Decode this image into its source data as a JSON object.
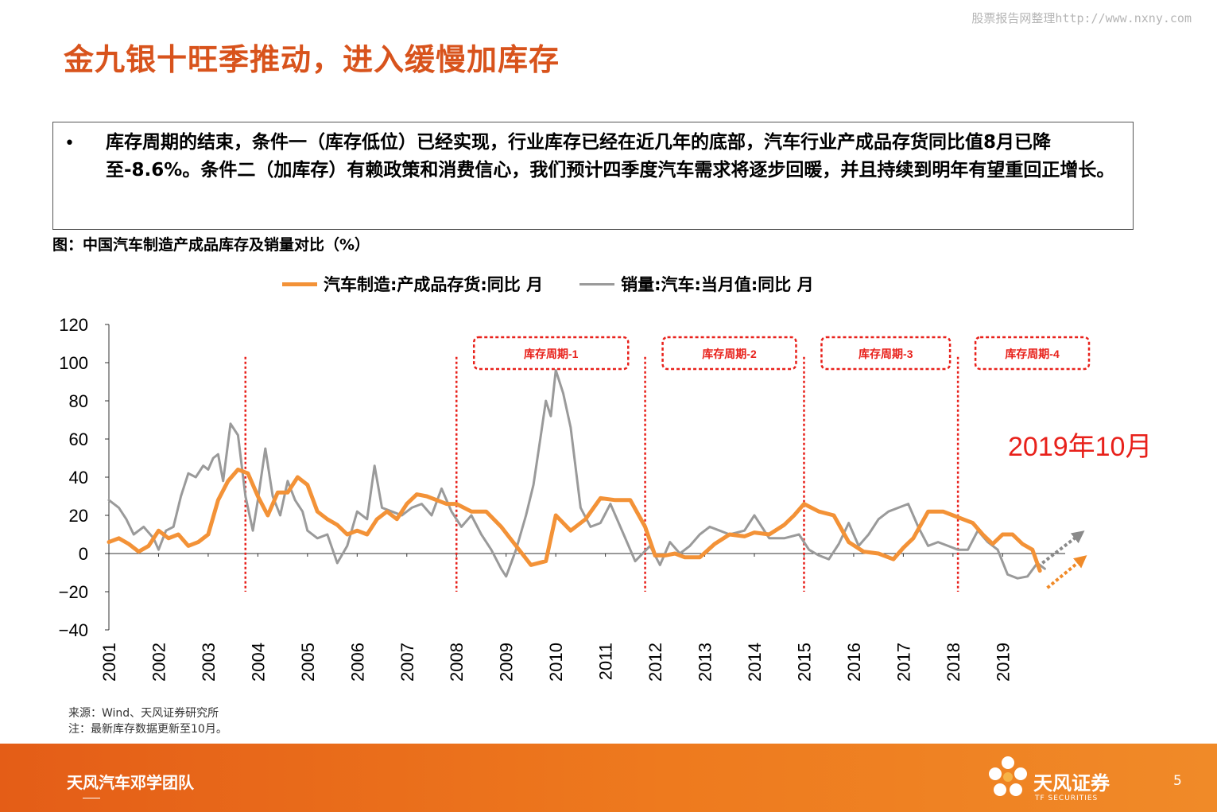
{
  "watermark": "股票报告网整理http://www.nxny.com",
  "title": "金九银十旺季推动，进入缓慢加库存",
  "bullet": {
    "marker": "•",
    "text": "库存周期的结束，条件一（库存低位）已经实现，行业库存已经在近几年的底部，汽车行业产成品存货同比值8月已降至-8.6%。条件二（加库存）有赖政策和消费信心，我们预计四季度汽车需求将逐步回暖，并且持续到明年有望重回正增长。"
  },
  "chart_caption": "图：中国汽车制造产成品库存及销量对比（%）",
  "source": {
    "line1": "来源：Wind、天风证券研究所",
    "line2": "注：最新库存数据更新至10月。"
  },
  "footer": {
    "team": "天风汽车邓学团队",
    "brand_cn": "天风证券",
    "brand_en": "TF SECURITIES",
    "page": "5"
  },
  "colors": {
    "accent": "#d8531c",
    "inventory": "#f39237",
    "sales": "#9a9a9a",
    "cycle_red": "#e8211b",
    "footer": "#e96a1b"
  },
  "chart_data": {
    "type": "line",
    "title": "",
    "xlabel": "",
    "ylabel": "",
    "ylim": [
      -40,
      120
    ],
    "yticks": [
      "120",
      "100",
      "80",
      "60",
      "40",
      "20",
      "0",
      "−20",
      "−40"
    ],
    "ytick_values": [
      120,
      100,
      80,
      60,
      40,
      20,
      0,
      -20,
      -40
    ],
    "xticks": [
      "2001",
      "2002",
      "2003",
      "2004",
      "2005",
      "2006",
      "2007",
      "2008",
      "2009",
      "2010",
      "2011",
      "2012",
      "2013",
      "2014",
      "2015",
      "2016",
      "2017",
      "2018",
      "2019"
    ],
    "xrange": [
      2001,
      2020.9
    ],
    "grid": false,
    "legend_position": "top",
    "series": [
      {
        "name": "汽车制造:产成品存货:同比 月",
        "color": "#f39237",
        "x": [
          2001.0,
          2001.2,
          2001.4,
          2001.6,
          2001.8,
          2002.0,
          2002.2,
          2002.4,
          2002.6,
          2002.8,
          2003.0,
          2003.2,
          2003.4,
          2003.6,
          2003.8,
          2004.0,
          2004.2,
          2004.4,
          2004.6,
          2004.8,
          2005.0,
          2005.2,
          2005.4,
          2005.6,
          2005.8,
          2006.0,
          2006.2,
          2006.4,
          2006.6,
          2006.8,
          2007.0,
          2007.2,
          2007.4,
          2007.6,
          2007.8,
          2008.0,
          2008.3,
          2008.6,
          2008.9,
          2009.2,
          2009.5,
          2009.8,
          2010.0,
          2010.3,
          2010.6,
          2010.9,
          2011.2,
          2011.5,
          2011.8,
          2012.0,
          2012.2,
          2012.4,
          2012.6,
          2012.9,
          2013.2,
          2013.5,
          2013.8,
          2014.0,
          2014.3,
          2014.6,
          2014.8,
          2015.0,
          2015.3,
          2015.6,
          2015.9,
          2016.2,
          2016.5,
          2016.8,
          2017.0,
          2017.2,
          2017.5,
          2017.8,
          2018.0,
          2018.2,
          2018.4,
          2018.6,
          2018.8,
          2019.0,
          2019.2,
          2019.4,
          2019.6,
          2019.75
        ],
        "values": [
          6,
          8,
          5,
          1,
          4,
          12,
          8,
          10,
          4,
          6,
          10,
          28,
          38,
          44,
          42,
          30,
          20,
          32,
          32,
          40,
          36,
          22,
          18,
          15,
          10,
          12,
          10,
          18,
          22,
          18,
          26,
          31,
          30,
          28,
          26,
          26,
          22,
          22,
          14,
          4,
          -6,
          -4,
          20,
          12,
          18,
          29,
          28,
          28,
          14,
          -1,
          -1,
          0,
          -2,
          -2,
          5,
          10,
          9,
          11,
          10,
          15,
          20,
          26,
          22,
          20,
          6,
          1,
          0,
          -3,
          3,
          8,
          22,
          22,
          20,
          18,
          16,
          10,
          5,
          10,
          10,
          5,
          2,
          -9
        ]
      },
      {
        "name": "销量:汽车:当月值:同比 月",
        "color": "#9a9a9a",
        "x": [
          2001.0,
          2001.2,
          2001.35,
          2001.5,
          2001.7,
          2001.9,
          2002.0,
          2002.15,
          2002.3,
          2002.45,
          2002.6,
          2002.75,
          2002.9,
          2003.0,
          2003.1,
          2003.2,
          2003.3,
          2003.45,
          2003.6,
          2003.75,
          2003.9,
          2004.0,
          2004.15,
          2004.3,
          2004.45,
          2004.6,
          2004.75,
          2004.9,
          2005.0,
          2005.2,
          2005.4,
          2005.6,
          2005.8,
          2006.0,
          2006.2,
          2006.35,
          2006.5,
          2006.7,
          2006.9,
          2007.1,
          2007.3,
          2007.5,
          2007.7,
          2007.9,
          2008.1,
          2008.3,
          2008.5,
          2008.7,
          2008.9,
          2009.0,
          2009.2,
          2009.4,
          2009.55,
          2009.7,
          2009.8,
          2009.9,
          2010.0,
          2010.15,
          2010.3,
          2010.5,
          2010.7,
          2010.9,
          2011.1,
          2011.3,
          2011.6,
          2011.9,
          2012.1,
          2012.3,
          2012.5,
          2012.7,
          2012.9,
          2013.1,
          2013.3,
          2013.5,
          2013.8,
          2014.0,
          2014.3,
          2014.6,
          2014.9,
          2015.1,
          2015.3,
          2015.5,
          2015.7,
          2015.9,
          2016.1,
          2016.3,
          2016.5,
          2016.7,
          2016.9,
          2017.1,
          2017.3,
          2017.5,
          2017.7,
          2017.9,
          2018.1,
          2018.3,
          2018.5,
          2018.7,
          2018.9,
          2019.1,
          2019.3,
          2019.5,
          2019.7,
          2019.85
        ],
        "values": [
          28,
          24,
          18,
          10,
          14,
          8,
          2,
          12,
          14,
          30,
          42,
          40,
          46,
          44,
          50,
          52,
          38,
          68,
          62,
          30,
          12,
          28,
          55,
          30,
          20,
          38,
          28,
          22,
          12,
          8,
          10,
          -5,
          4,
          22,
          18,
          46,
          24,
          22,
          20,
          24,
          26,
          20,
          34,
          22,
          14,
          20,
          10,
          2,
          -8,
          -12,
          2,
          20,
          36,
          62,
          80,
          72,
          96,
          84,
          66,
          24,
          14,
          16,
          26,
          14,
          -4,
          4,
          -6,
          6,
          0,
          4,
          10,
          14,
          12,
          10,
          12,
          20,
          8,
          8,
          10,
          2,
          -1,
          -3,
          5,
          16,
          4,
          10,
          18,
          22,
          24,
          26,
          14,
          4,
          6,
          4,
          2,
          2,
          12,
          6,
          2,
          -11,
          -13,
          -12,
          -5,
          -8
        ]
      }
    ],
    "cycles": [
      {
        "label": "库存周期-1",
        "start": 2008.0,
        "end": 2011.8
      },
      {
        "label": "库存周期-2",
        "start": 2011.8,
        "end": 2015.0
      },
      {
        "label": "库存周期-3",
        "start": 2015.0,
        "end": 2018.1
      },
      {
        "label": "库存周期-4",
        "start": 2018.1,
        "end": 2020.9
      }
    ],
    "cycle_lines": [
      2003.75,
      2008.0,
      2011.8,
      2015.0,
      2018.1
    ],
    "annotation": "2019年10月"
  }
}
